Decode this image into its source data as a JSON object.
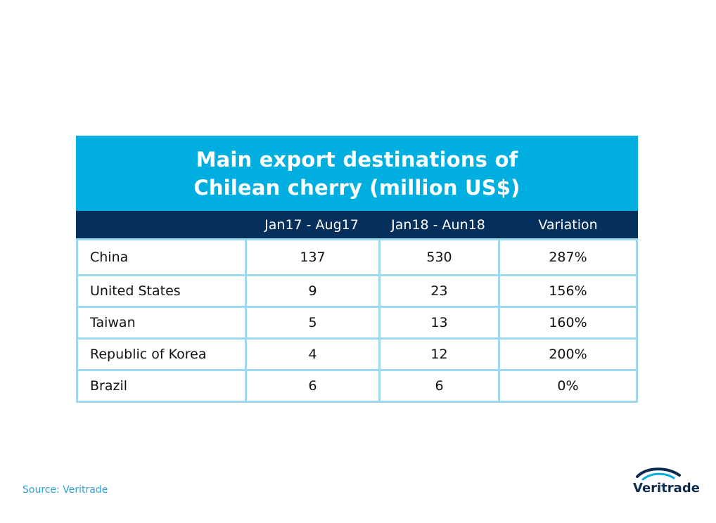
{
  "chart_data": {
    "type": "table",
    "title_line1": "Main export destinations of",
    "title_line2": "Chilean cherry (million US$)",
    "columns": [
      "",
      "Jan17 - Aug17",
      "Jan18 - Aun18",
      "Variation"
    ],
    "rows": [
      {
        "country": "China",
        "v2017": "137",
        "v2018": "530",
        "variation": "287%"
      },
      {
        "country": "United States",
        "v2017": "9",
        "v2018": "23",
        "variation": "156%"
      },
      {
        "country": "Taiwan",
        "v2017": "5",
        "v2018": "13",
        "variation": "160%"
      },
      {
        "country": "Republic of Korea",
        "v2017": "4",
        "v2018": "12",
        "variation": "200%"
      },
      {
        "country": "Brazil",
        "v2017": "6",
        "v2018": "6",
        "variation": "0%"
      }
    ]
  },
  "source": "Source: Veritrade",
  "logo": {
    "text": "Veritrade",
    "icon": "veritrade-arc-logo-icon"
  },
  "colors": {
    "title_band": "#00AEDF",
    "header_band": "#062F5B",
    "grid": "#9DD8EE",
    "source": "#2FA3D8",
    "logo": "#0B2B4F"
  }
}
